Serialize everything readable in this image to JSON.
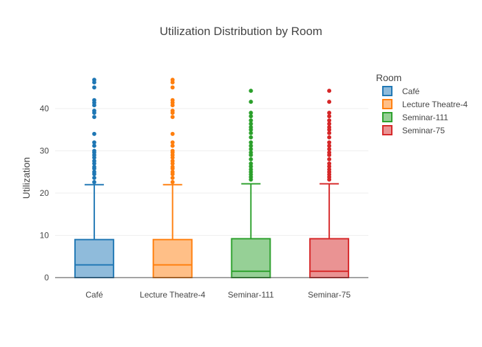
{
  "chart_data": {
    "type": "box",
    "title": "Utilization Distribution by Room",
    "xlabel": "",
    "ylabel": "Utilization",
    "ylim": [
      0,
      50
    ],
    "yticks": [
      0,
      10,
      20,
      30,
      40
    ],
    "grid": true,
    "legend": {
      "title": "Room",
      "position": "right"
    },
    "categories": [
      "Café",
      "Lecture Theatre-4",
      "Seminar-111",
      "Seminar-75"
    ],
    "series": [
      {
        "name": "Café",
        "color": "#1f77b4",
        "fill": "#8fbbdb",
        "min": 0,
        "q1": 0,
        "median": 3,
        "q3": 9,
        "upper_whisker": 22,
        "outliers": [
          22.6,
          23.6,
          24.5,
          25.0,
          25.8,
          26.2,
          27.0,
          27.6,
          28.4,
          29.0,
          29.6,
          30.0,
          31.2,
          32.0,
          34.0,
          38.0,
          39.0,
          39.5,
          40.8,
          41.4,
          42.0,
          45.0,
          46.2,
          46.8
        ]
      },
      {
        "name": "Lecture Theatre-4",
        "color": "#ff7f0e",
        "fill": "#ffbf87",
        "min": 0,
        "q1": 0,
        "median": 3,
        "q3": 9,
        "upper_whisker": 22,
        "outliers": [
          22.6,
          23.6,
          24.5,
          25.0,
          25.8,
          26.2,
          27.0,
          27.6,
          28.4,
          29.0,
          29.6,
          30.0,
          31.2,
          32.0,
          34.0,
          38.0,
          39.0,
          39.5,
          40.8,
          41.4,
          42.0,
          45.0,
          46.2,
          46.8
        ]
      },
      {
        "name": "Seminar-111",
        "color": "#2ca02c",
        "fill": "#96d096",
        "min": 0,
        "q1": 0,
        "median": 1.5,
        "q3": 9.2,
        "upper_whisker": 22.2,
        "outliers": [
          23.2,
          23.8,
          24.4,
          25.0,
          25.6,
          26.3,
          27.0,
          28.0,
          29.0,
          29.6,
          30.4,
          31.2,
          32.0,
          33.2,
          34.2,
          35.0,
          35.6,
          36.4,
          37.2,
          38.2,
          39.0,
          41.6,
          44.2
        ]
      },
      {
        "name": "Seminar-75",
        "color": "#d62728",
        "fill": "#ea9393",
        "min": 0,
        "q1": 0,
        "median": 1.5,
        "q3": 9.2,
        "upper_whisker": 22.2,
        "outliers": [
          23.2,
          23.8,
          24.4,
          25.0,
          25.6,
          26.3,
          27.0,
          28.0,
          29.0,
          29.6,
          30.4,
          31.2,
          32.0,
          33.2,
          34.2,
          35.0,
          35.6,
          36.4,
          37.2,
          38.2,
          39.0,
          41.6,
          44.2
        ]
      }
    ]
  }
}
